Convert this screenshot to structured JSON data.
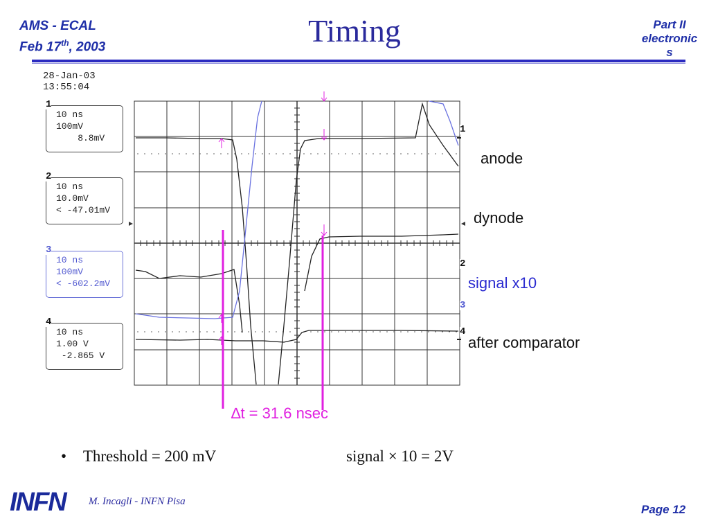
{
  "header": {
    "left_line1": "AMS - ECAL",
    "left_line2_pre": "Feb 17",
    "left_line2_sup": "th",
    "left_line2_post": ", 2003",
    "title": "Timing",
    "right_line1": "Part II",
    "right_line2": "electronic",
    "right_line3": "s"
  },
  "scope": {
    "date": "28-Jan-03",
    "time": "13:55:04",
    "channels": [
      {
        "num": "1",
        "timebase": "10 ns",
        "scale": "100mV",
        "reading": "    8.8mV",
        "color": "#222222"
      },
      {
        "num": "2",
        "timebase": "10 ns",
        "scale": "10.0mV",
        "reading": "< -47.01mV",
        "color": "#222222"
      },
      {
        "num": "3",
        "timebase": "10 ns",
        "scale": "100mV",
        "reading": "< -602.2mV",
        "color": "#5058d0"
      },
      {
        "num": "4",
        "timebase": "10 ns",
        "scale": "1.00 V",
        "reading": " -2.865 V",
        "color": "#222222"
      }
    ]
  },
  "labels": {
    "anode": "anode",
    "dynode": "dynode",
    "signal": "signal x10",
    "comparator": "after comparator",
    "delta_t": "∆t = 31.6 nsec"
  },
  "footer": {
    "bullet_text": "Threshold = 200 mV",
    "signal_text": "signal × 10 = 2V",
    "logo": "INFN",
    "author": "M. Incagli - INFN Pisa",
    "page": "Page 12"
  },
  "colors": {
    "accent": "#1f2fa8",
    "marker": "#e020e0",
    "trace_blue": "#6a72e0"
  }
}
